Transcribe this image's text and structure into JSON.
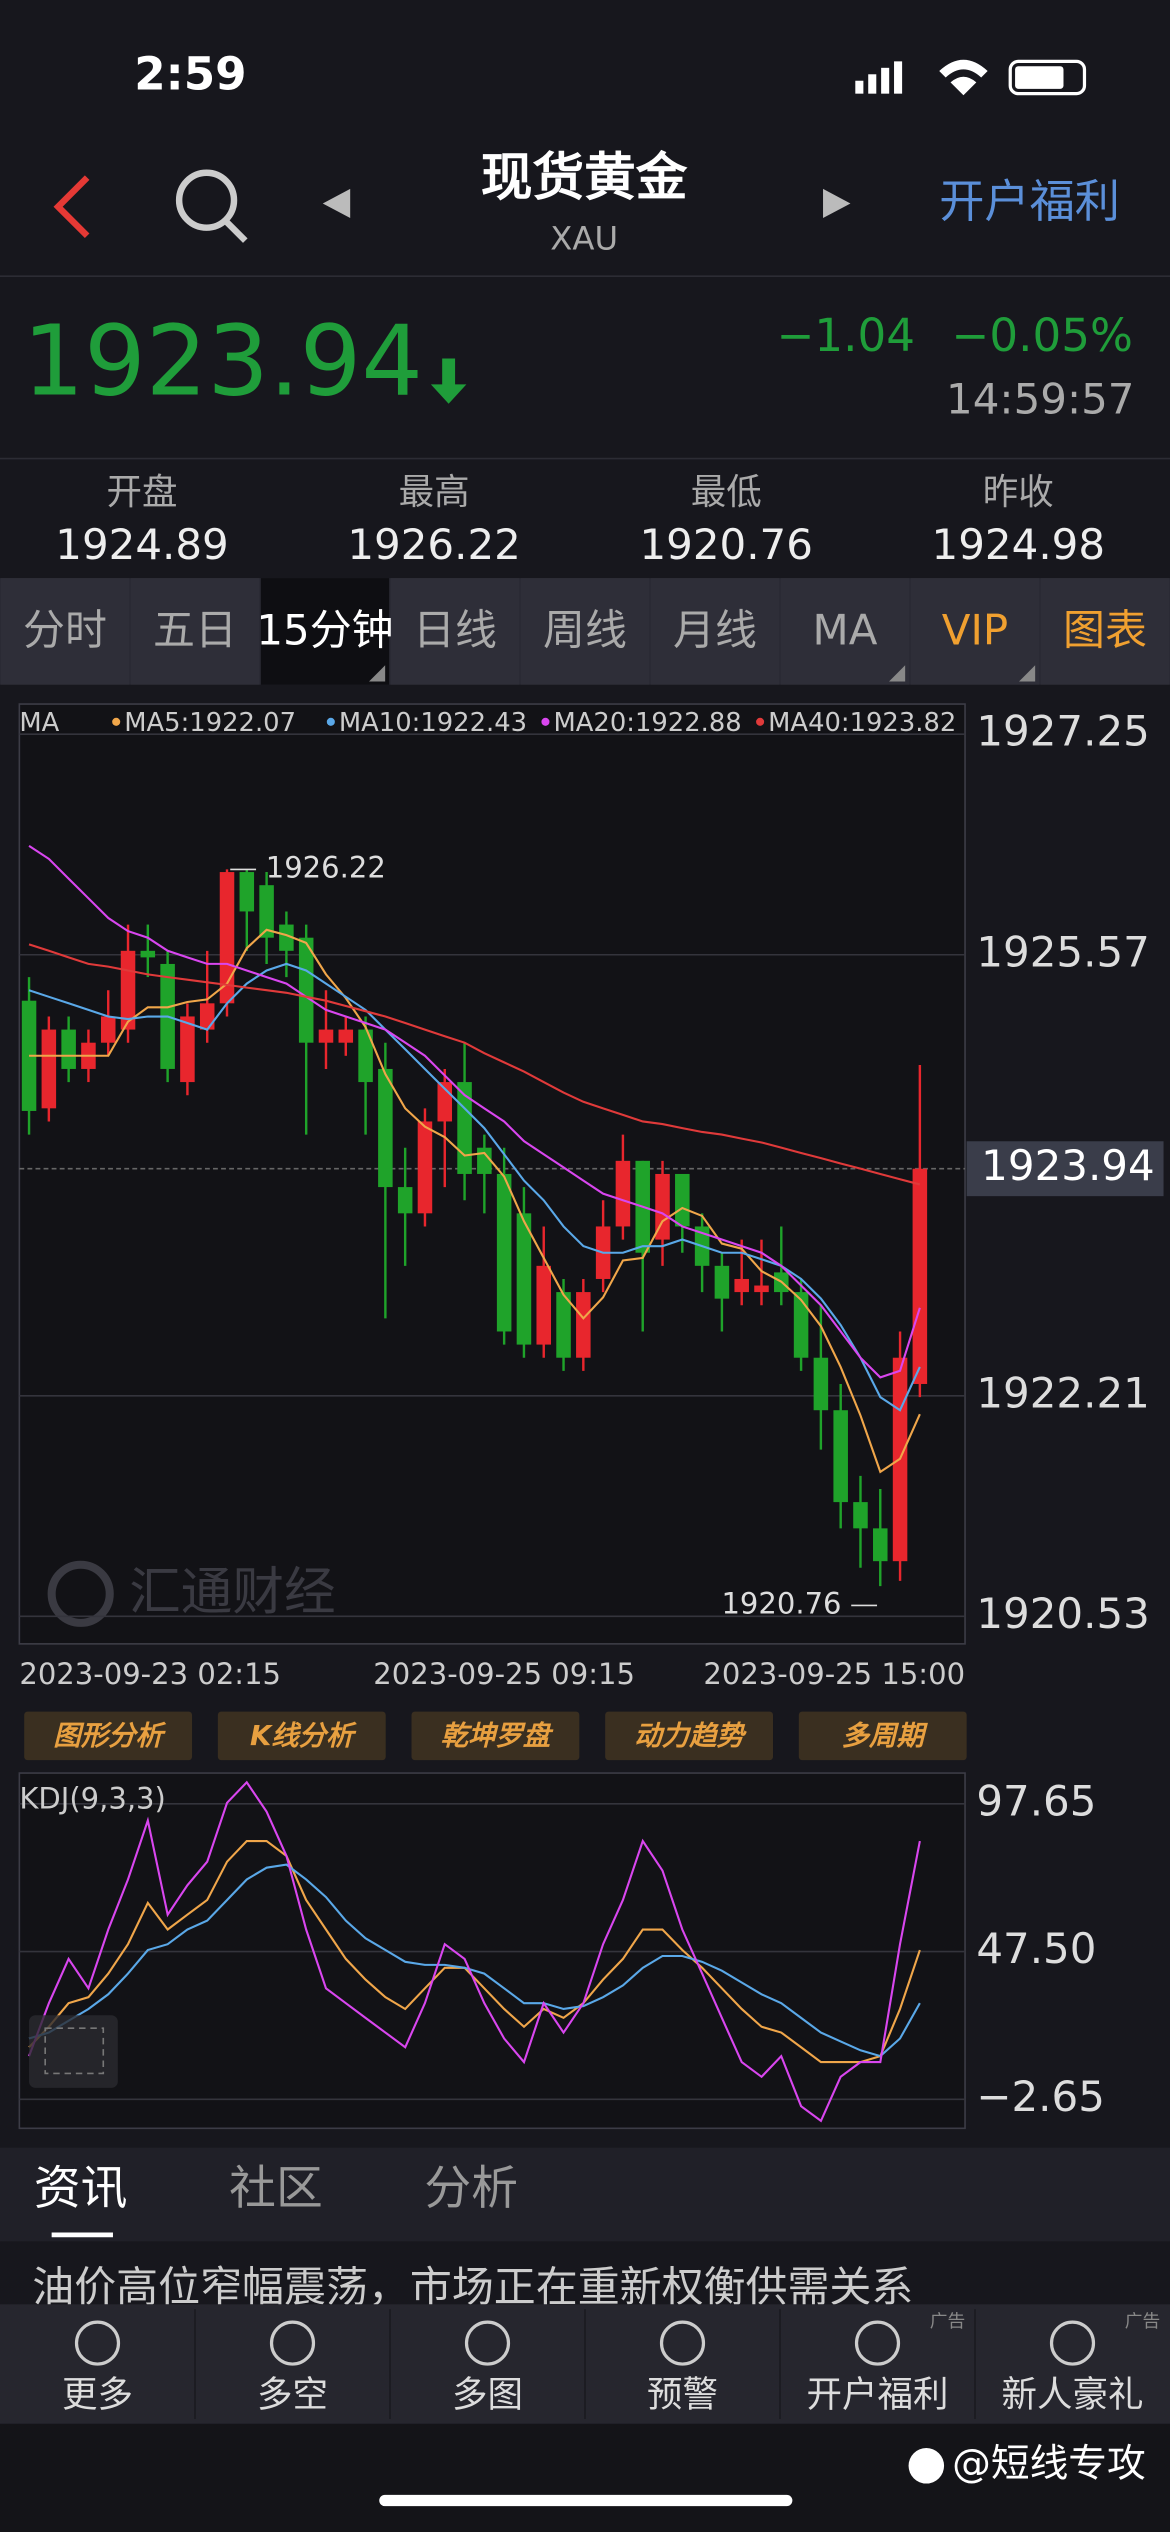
{
  "status_bar": {
    "time": "2:59"
  },
  "header": {
    "title": "现货黄金",
    "subtitle": "XAU",
    "action": "开户福利"
  },
  "quote": {
    "price": "1923.94",
    "change": "−1.04",
    "change_pct": "−0.05%",
    "time": "14:59:57"
  },
  "stats": [
    {
      "label": "开盘",
      "value": "1924.89"
    },
    {
      "label": "最高",
      "value": "1926.22"
    },
    {
      "label": "最低",
      "value": "1920.76"
    },
    {
      "label": "昨收",
      "value": "1924.98"
    }
  ],
  "tabs": [
    "分时",
    "五日",
    "15分钟",
    "日线",
    "周线",
    "月线",
    "MA",
    "VIP",
    "图表"
  ],
  "selected_tab": 2,
  "chart_data": [
    {
      "type": "candlestick",
      "indicator": "MA",
      "x": [
        "2023-09-23 02:15",
        null,
        null,
        null,
        null,
        null,
        null,
        null,
        null,
        null,
        null,
        null,
        null,
        null,
        null,
        null,
        null,
        null,
        null,
        null,
        null,
        null,
        null,
        null,
        "2023-09-25 09:15",
        null,
        null,
        null,
        null,
        null,
        null,
        null,
        null,
        null,
        null,
        null,
        null,
        null,
        null,
        null,
        null,
        null,
        null,
        null,
        null,
        "2023-09-25 15:00"
      ],
      "open": [
        1925.22,
        1924.4,
        1925.0,
        1924.7,
        1924.9,
        1925.0,
        1925.6,
        1925.5,
        1924.6,
        1925.0,
        1925.2,
        1926.2,
        1926.1,
        1925.8,
        1925.7,
        1924.9,
        1924.9,
        1925.0,
        1924.7,
        1923.8,
        1923.6,
        1924.3,
        1924.6,
        1924.1,
        1923.9,
        1923.6,
        1922.6,
        1923.0,
        1922.5,
        1923.1,
        1923.5,
        1924.0,
        1923.4,
        1923.9,
        1923.5,
        1923.2,
        1923.0,
        1923.0,
        1923.15,
        1923.0,
        1922.5,
        1922.1,
        1921.4,
        1921.2,
        1920.95,
        1922.3
      ],
      "high": [
        1925.4,
        1925.1,
        1925.1,
        1925.0,
        1925.3,
        1925.8,
        1925.8,
        1925.6,
        1925.2,
        1925.6,
        1926.22,
        1926.22,
        1926.2,
        1925.9,
        1925.8,
        1925.3,
        1925.1,
        1925.1,
        1924.9,
        1924.1,
        1924.4,
        1924.7,
        1924.9,
        1924.2,
        1924.1,
        1923.8,
        1923.5,
        1923.1,
        1923.1,
        1923.7,
        1924.2,
        1924.0,
        1924.0,
        1923.9,
        1923.6,
        1923.3,
        1923.4,
        1923.4,
        1923.5,
        1923.1,
        1922.9,
        1922.3,
        1921.6,
        1921.5,
        1922.7,
        1924.73
      ],
      "low": [
        1924.2,
        1924.3,
        1924.6,
        1924.6,
        1924.8,
        1924.9,
        1925.4,
        1924.6,
        1924.5,
        1924.9,
        1925.1,
        1925.6,
        1925.5,
        1925.4,
        1924.2,
        1924.7,
        1924.8,
        1924.2,
        1922.8,
        1923.2,
        1923.5,
        1923.8,
        1923.7,
        1923.6,
        1922.6,
        1922.5,
        1922.5,
        1922.4,
        1922.4,
        1923.0,
        1923.4,
        1922.7,
        1923.2,
        1923.3,
        1923.0,
        1922.7,
        1922.9,
        1922.9,
        1922.9,
        1922.4,
        1921.8,
        1921.2,
        1920.9,
        1920.76,
        1920.8,
        1922.2
      ],
      "close": [
        1924.38,
        1925.0,
        1924.7,
        1924.9,
        1925.1,
        1925.6,
        1925.55,
        1924.7,
        1925.1,
        1925.2,
        1926.2,
        1925.9,
        1925.7,
        1925.6,
        1924.9,
        1925.0,
        1925.0,
        1924.6,
        1923.8,
        1923.6,
        1924.3,
        1924.6,
        1923.9,
        1923.9,
        1922.7,
        1922.6,
        1923.2,
        1922.5,
        1923.0,
        1923.5,
        1924.0,
        1923.3,
        1923.9,
        1923.5,
        1923.2,
        1922.95,
        1923.1,
        1923.05,
        1923.0,
        1922.5,
        1922.1,
        1921.4,
        1921.2,
        1920.95,
        1922.5,
        1923.94
      ],
      "up_color": "#e8262d",
      "down_color": "#1fa32a",
      "series": [
        {
          "name": "MA5:1922.07",
          "color": "#f0a64a",
          "values": [
            1924.8,
            1924.8,
            1924.8,
            1924.8,
            1924.8,
            1925.06,
            1925.17,
            1925.17,
            1925.21,
            1925.23,
            1925.35,
            1925.62,
            1925.76,
            1925.72,
            1925.66,
            1925.42,
            1925.24,
            1925.02,
            1924.66,
            1924.4,
            1924.26,
            1924.18,
            1924.04,
            1924.06,
            1923.88,
            1923.54,
            1923.26,
            1922.98,
            1922.8,
            1922.96,
            1923.24,
            1923.26,
            1923.54,
            1923.64,
            1923.58,
            1923.37,
            1923.33,
            1923.16,
            1923.08,
            1922.94,
            1922.74,
            1922.43,
            1922.06,
            1921.63,
            1921.73,
            1922.07
          ]
        },
        {
          "name": "MA10:1922.43",
          "color": "#5aa8e8",
          "values": [
            1925.3,
            1925.25,
            1925.2,
            1925.15,
            1925.1,
            1925.08,
            1925.1,
            1925.1,
            1925.05,
            1925.0,
            1925.2,
            1925.35,
            1925.45,
            1925.5,
            1925.45,
            1925.35,
            1925.25,
            1925.15,
            1925.0,
            1924.85,
            1924.7,
            1924.55,
            1924.4,
            1924.25,
            1924.05,
            1923.85,
            1923.7,
            1923.5,
            1923.35,
            1923.3,
            1923.3,
            1923.35,
            1923.35,
            1923.4,
            1923.35,
            1923.3,
            1923.3,
            1923.25,
            1923.2,
            1923.1,
            1922.95,
            1922.75,
            1922.5,
            1922.2,
            1922.1,
            1922.43
          ]
        },
        {
          "name": "MA20:1922.88",
          "color": "#d946ef",
          "values": [
            1926.4,
            1926.3,
            1926.15,
            1926.0,
            1925.85,
            1925.75,
            1925.7,
            1925.6,
            1925.55,
            1925.5,
            1925.5,
            1925.45,
            1925.4,
            1925.35,
            1925.25,
            1925.15,
            1925.1,
            1925.05,
            1925.0,
            1924.9,
            1924.8,
            1924.65,
            1924.5,
            1924.4,
            1924.3,
            1924.15,
            1924.05,
            1923.95,
            1923.85,
            1923.75,
            1923.7,
            1923.65,
            1923.6,
            1923.5,
            1923.45,
            1923.4,
            1923.35,
            1923.3,
            1923.2,
            1923.05,
            1922.9,
            1922.7,
            1922.5,
            1922.35,
            1922.4,
            1922.88
          ]
        },
        {
          "name": "MA40:1923.82",
          "color": "#e03a3a",
          "values": [
            1925.65,
            1925.6,
            1925.55,
            1925.5,
            1925.48,
            1925.45,
            1925.42,
            1925.4,
            1925.38,
            1925.36,
            1925.34,
            1925.32,
            1925.3,
            1925.28,
            1925.25,
            1925.22,
            1925.18,
            1925.14,
            1925.1,
            1925.05,
            1925.0,
            1924.95,
            1924.9,
            1924.82,
            1924.75,
            1924.68,
            1924.6,
            1924.52,
            1924.45,
            1924.4,
            1924.35,
            1924.3,
            1924.28,
            1924.25,
            1924.22,
            1924.2,
            1924.17,
            1924.14,
            1924.1,
            1924.06,
            1924.02,
            1923.98,
            1923.94,
            1923.9,
            1923.86,
            1923.82
          ]
        }
      ],
      "ylim": [
        1920.32,
        1927.48
      ],
      "yticks": [
        1927.25,
        1925.57,
        1922.21,
        1920.53
      ],
      "grid": true,
      "last_price": 1923.94,
      "high_label": 1926.22,
      "low_label": 1920.76,
      "watermark": "汇通财经"
    },
    {
      "type": "line",
      "title": "KDJ(9,3,3)",
      "series": [
        {
          "color": "#f0a64a",
          "values": [
            15,
            22,
            30,
            32,
            40,
            50,
            64,
            55,
            60,
            65,
            78,
            85,
            85,
            80,
            65,
            55,
            45,
            38,
            32,
            28,
            35,
            42,
            42,
            35,
            28,
            22,
            28,
            25,
            30,
            38,
            45,
            55,
            55,
            48,
            42,
            35,
            28,
            22,
            20,
            15,
            10,
            10,
            10,
            12,
            28,
            48
          ]
        },
        {
          "color": "#5aa8e8",
          "values": [
            18,
            20,
            24,
            28,
            33,
            40,
            48,
            50,
            55,
            58,
            65,
            72,
            76,
            77,
            72,
            66,
            58,
            52,
            48,
            44,
            43,
            43,
            42,
            40,
            35,
            30,
            30,
            28,
            29,
            32,
            36,
            42,
            46,
            46,
            44,
            41,
            37,
            33,
            30,
            25,
            20,
            17,
            14,
            12,
            18,
            30
          ]
        },
        {
          "color": "#d946ef",
          "values": [
            12,
            30,
            45,
            35,
            55,
            72,
            92,
            60,
            70,
            78,
            98,
            105,
            95,
            80,
            55,
            35,
            30,
            25,
            20,
            15,
            30,
            50,
            45,
            30,
            18,
            10,
            30,
            20,
            30,
            50,
            65,
            85,
            75,
            55,
            40,
            25,
            10,
            5,
            12,
            -5,
            -10,
            5,
            10,
            10,
            50,
            85
          ]
        }
      ],
      "ylim": [
        -12.5,
        108.1
      ],
      "yticks": [
        97.65,
        {
          "value": 47.5,
          "label": "47.50"
        },
        {
          "value": -2.65,
          "label": "−2.65"
        }
      ],
      "grid": true
    }
  ],
  "tools": [
    "图形分析",
    "K线分析",
    "乾坤罗盘",
    "动力趋势",
    "多周期"
  ],
  "news_tabs": [
    "资讯",
    "社区",
    "分析"
  ],
  "news_headline": "油价高位窄幅震荡，市场正在重新权衡供需关系",
  "nav": [
    {
      "label": "更多"
    },
    {
      "label": "多空"
    },
    {
      "label": "多图"
    },
    {
      "label": "预警"
    },
    {
      "label": "开户福利",
      "badge": "广告"
    },
    {
      "label": "新人豪礼",
      "badge": "广告"
    }
  ],
  "watermark": "@短线专攻"
}
